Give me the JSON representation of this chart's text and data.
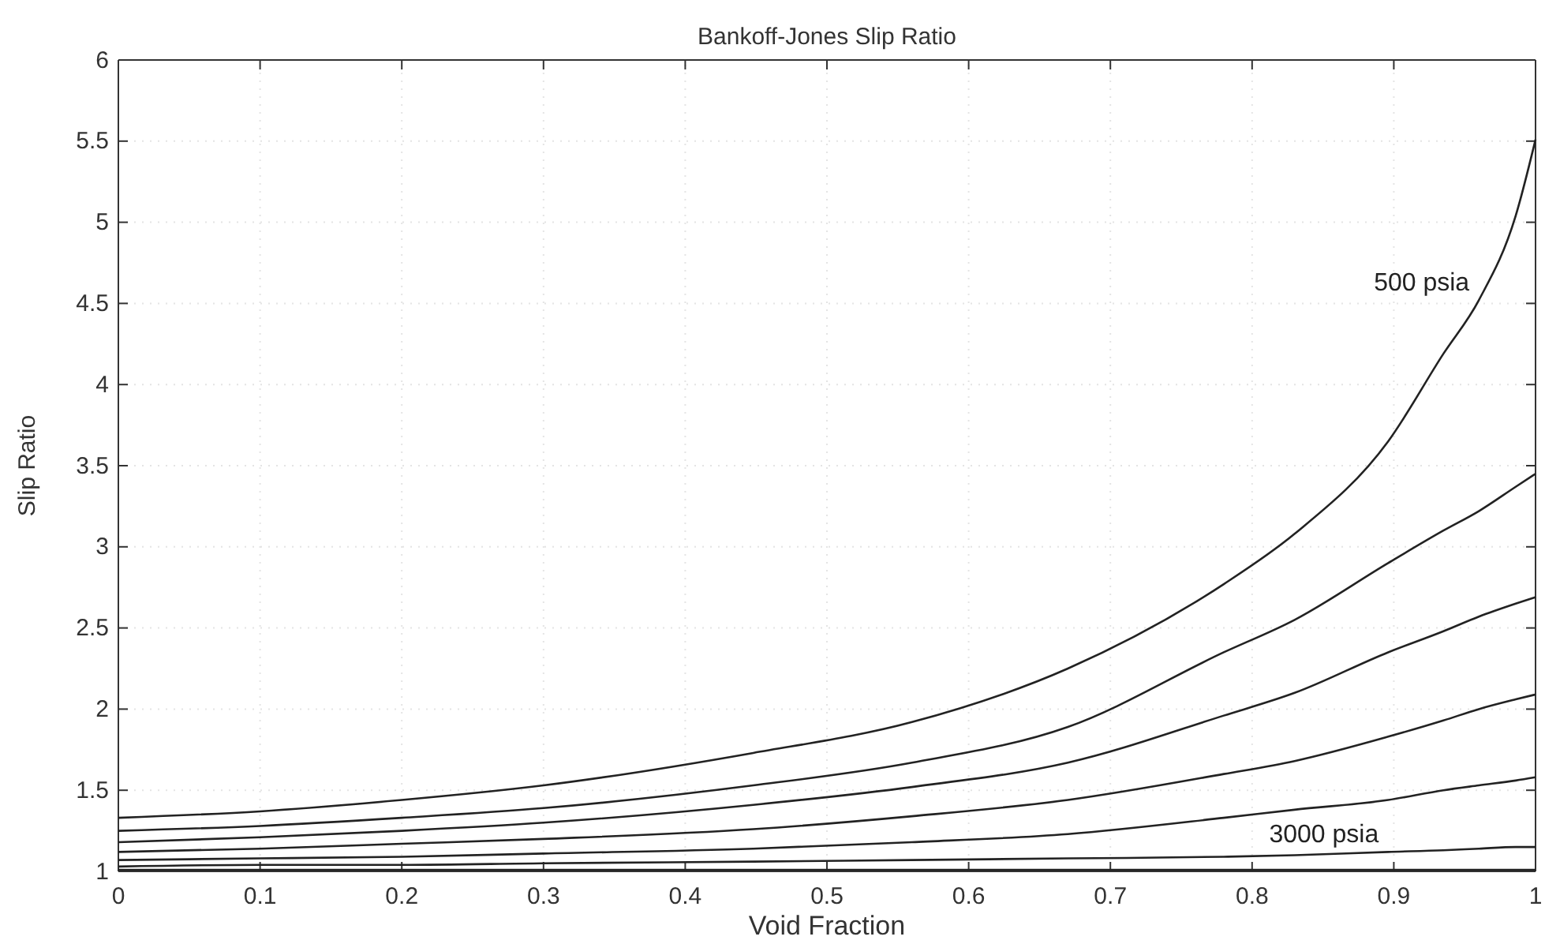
{
  "chart_data": {
    "type": "line",
    "title": "Bankoff-Jones Slip Ratio",
    "xlabel": "Void Fraction",
    "ylabel": "Slip Ratio",
    "x": [
      0,
      0.1,
      0.2,
      0.3,
      0.448,
      0.56,
      0.67,
      0.78,
      0.83,
      0.896,
      0.935,
      0.96,
      0.986,
      1
    ],
    "series": [
      {
        "name": "500 psia",
        "color": "#222222",
        "values": [
          1.33,
          1.37,
          1.44,
          1.53,
          1.73,
          1.92,
          2.25,
          2.77,
          3.08,
          3.65,
          4.19,
          4.52,
          5.04,
          5.51
        ]
      },
      {
        "color": "#222222",
        "values": [
          1.25,
          1.28,
          1.33,
          1.39,
          1.53,
          1.67,
          1.89,
          2.35,
          2.55,
          2.9,
          3.1,
          3.22,
          3.37,
          3.45
        ]
      },
      {
        "color": "#222222",
        "values": [
          1.18,
          1.21,
          1.25,
          1.3,
          1.41,
          1.52,
          1.67,
          1.96,
          2.1,
          2.35,
          2.48,
          2.57,
          2.65,
          2.69
        ]
      },
      {
        "color": "#222222",
        "values": [
          1.12,
          1.14,
          1.17,
          1.2,
          1.26,
          1.34,
          1.44,
          1.6,
          1.68,
          1.83,
          1.93,
          2.0,
          2.06,
          2.09
        ]
      },
      {
        "color": "#222222",
        "values": [
          1.07,
          1.08,
          1.09,
          1.11,
          1.14,
          1.18,
          1.23,
          1.33,
          1.38,
          1.44,
          1.5,
          1.53,
          1.56,
          1.58
        ]
      },
      {
        "name": "3000 psia",
        "color": "#222222",
        "values": [
          1.03,
          1.04,
          1.04,
          1.05,
          1.06,
          1.07,
          1.08,
          1.09,
          1.1,
          1.12,
          1.13,
          1.14,
          1.15,
          1.15
        ]
      },
      {
        "color": "#222222",
        "values": [
          1.01,
          1.01,
          1.01,
          1.01,
          1.01,
          1.01,
          1.01,
          1.01,
          1.01,
          1.01,
          1.01,
          1.01,
          1.01,
          1.01
        ]
      }
    ],
    "xlim": [
      0,
      1
    ],
    "xticks": [
      0,
      0.1,
      0.2,
      0.3,
      0.4,
      0.5,
      0.6,
      0.7,
      0.8,
      0.9,
      1
    ],
    "ylim": [
      1,
      6
    ],
    "yticks": [
      1,
      1.5,
      2,
      2.5,
      3,
      3.5,
      4,
      4.5,
      5,
      5.5,
      6
    ],
    "grid": true,
    "line_style": "solid",
    "marker": "none",
    "legend": false
  }
}
